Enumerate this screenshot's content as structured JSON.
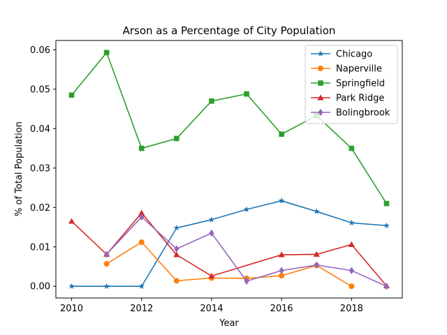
{
  "chart_data": {
    "type": "line",
    "title": "Arson as a Percentage of City Population",
    "xlabel": "Year",
    "ylabel": "% of Total Population",
    "xlim": [
      2009.55,
      2019.45
    ],
    "ylim": [
      -0.00297,
      0.06237
    ],
    "x_ticks": [
      2010,
      2012,
      2014,
      2016,
      2018
    ],
    "y_ticks": [
      0.0,
      0.01,
      0.02,
      0.03,
      0.04,
      0.05,
      0.06
    ],
    "y_tick_labels": [
      "0.00",
      "0.01",
      "0.02",
      "0.03",
      "0.04",
      "0.05",
      "0.06"
    ],
    "grid": false,
    "legend_position": "upper right",
    "series": [
      {
        "name": "Chicago",
        "color": "#1f77b4",
        "marker": "star",
        "x": [
          2010,
          2011,
          2012,
          2013,
          2014,
          2015,
          2016,
          2017,
          2018,
          2019
        ],
        "y": [
          0.0,
          0.0,
          0.0,
          0.0148,
          0.0169,
          0.0195,
          0.0217,
          0.019,
          0.0161,
          0.0154
        ]
      },
      {
        "name": "Naperville",
        "color": "#ff7f0e",
        "marker": "circle",
        "x": [
          2011,
          2012,
          2013,
          2014,
          2015,
          2016,
          2017,
          2018
        ],
        "y": [
          0.0057,
          0.0112,
          0.0014,
          0.0021,
          0.002,
          0.0027,
          0.0053,
          0.0
        ]
      },
      {
        "name": "Springfield",
        "color": "#2ca02c",
        "marker": "square",
        "x": [
          2010,
          2011,
          2012,
          2013,
          2014,
          2015,
          2016,
          2017,
          2018,
          2019
        ],
        "y": [
          0.0485,
          0.0593,
          0.035,
          0.0375,
          0.047,
          0.0488,
          0.0386,
          0.0433,
          0.035,
          0.021
        ]
      },
      {
        "name": "Park Ridge",
        "color": "#d62728",
        "marker": "triangle",
        "x": [
          2010,
          2011,
          2012,
          2013,
          2014,
          2016,
          2017,
          2018,
          2019
        ],
        "y": [
          0.0165,
          0.0081,
          0.0186,
          0.008,
          0.0026,
          0.008,
          0.0081,
          0.0106,
          0.0001
        ]
      },
      {
        "name": "Bolingbrook",
        "color": "#9467bd",
        "marker": "diamond",
        "x": [
          2011,
          2012,
          2013,
          2014,
          2015,
          2016,
          2017,
          2018,
          2019
        ],
        "y": [
          0.0081,
          0.0176,
          0.0095,
          0.0135,
          0.0013,
          0.004,
          0.0054,
          0.004,
          0.0
        ]
      }
    ]
  }
}
